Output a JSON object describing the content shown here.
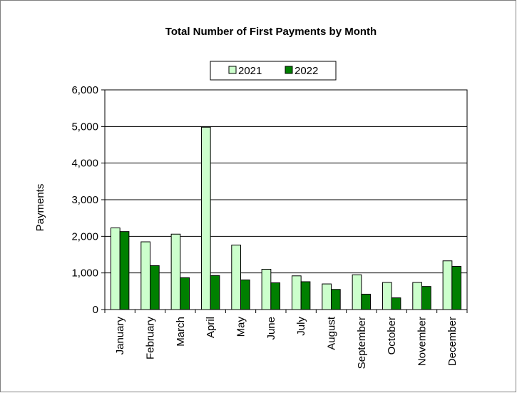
{
  "chart_data": {
    "type": "bar",
    "title": "Total Number of First Payments by Month",
    "xlabel": "",
    "ylabel": "Payments",
    "ylim": [
      0,
      6000
    ],
    "yticks": [
      0,
      1000,
      2000,
      3000,
      4000,
      5000,
      6000
    ],
    "ytick_labels": [
      "0",
      "1,000",
      "2,000",
      "3,000",
      "4,000",
      "5,000",
      "6,000"
    ],
    "categories": [
      "January",
      "February",
      "March",
      "April",
      "May",
      "June",
      "July",
      "August",
      "September",
      "October",
      "November",
      "December"
    ],
    "series": [
      {
        "name": "2021",
        "color": "#ccffcc",
        "values": [
          2230,
          1850,
          2060,
          4980,
          1760,
          1100,
          920,
          700,
          950,
          740,
          740,
          1330
        ]
      },
      {
        "name": "2022",
        "color": "#008000",
        "values": [
          2130,
          1200,
          870,
          930,
          810,
          730,
          760,
          550,
          420,
          320,
          630,
          1180
        ]
      }
    ],
    "grid": true,
    "legend_position": "top-center"
  }
}
